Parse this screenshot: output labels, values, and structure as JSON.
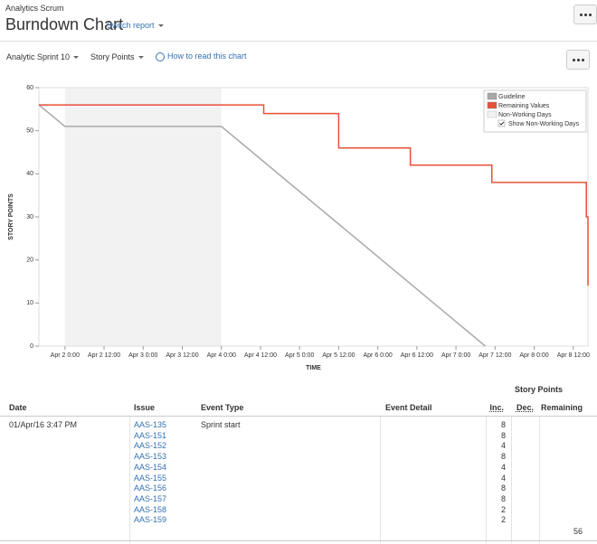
{
  "header": {
    "project": "Analytics Scrum",
    "title": "Burndown Chart",
    "switch": "Switch report"
  },
  "toolbar": {
    "sprint": "Analytic Sprint 10",
    "estimate": "Story Points",
    "help": "How to read this chart"
  },
  "chart_data": {
    "type": "line",
    "xlabel": "TIME",
    "ylabel": "STORY POINTS",
    "xlim": [
      -8,
      160.5
    ],
    "xticks": [
      {
        "value": 0,
        "label": "Apr 2 0:00"
      },
      {
        "value": 12,
        "label": "Apr 2 12:00"
      },
      {
        "value": 24,
        "label": "Apr 3 0:00"
      },
      {
        "value": 36,
        "label": "Apr 3 12:00"
      },
      {
        "value": 48,
        "label": "Apr 4 0:00"
      },
      {
        "value": 60,
        "label": "Apr 4 12:00"
      },
      {
        "value": 72,
        "label": "Apr 5 0:00"
      },
      {
        "value": 84,
        "label": "Apr 5 12:00"
      },
      {
        "value": 96,
        "label": "Apr 6 0:00"
      },
      {
        "value": 108,
        "label": "Apr 6 12:00"
      },
      {
        "value": 120,
        "label": "Apr 7 0:00"
      },
      {
        "value": 132,
        "label": "Apr 7 12:00"
      },
      {
        "value": 144,
        "label": "Apr 8 0:00"
      },
      {
        "value": 156,
        "label": "Apr 8 12:00"
      }
    ],
    "ylim": [
      0,
      60
    ],
    "yticks": [
      0,
      10,
      20,
      30,
      40,
      50,
      60
    ],
    "non_working": {
      "name": "Non-Working Days",
      "color": "#f2f2f2",
      "x": [
        0,
        48
      ]
    },
    "legend_toggle": "Show Non-Working Days",
    "series": [
      {
        "name": "Guideline",
        "color": "#a8a8a8",
        "x": [
          -8,
          0,
          48,
          129
        ],
        "values": [
          56,
          51,
          51,
          0
        ]
      },
      {
        "name": "Remaining Values",
        "color": "#e8503a",
        "x": [
          -8,
          61,
          61,
          84,
          84,
          106,
          106,
          131,
          131,
          160,
          160,
          160.5,
          160.5
        ],
        "values": [
          56,
          56,
          54,
          54,
          46,
          46,
          42,
          42,
          38,
          38,
          30,
          30,
          14
        ]
      }
    ]
  },
  "table": {
    "group": "Story Points",
    "columns": [
      "Date",
      "Issue",
      "Event Type",
      "Event Detail",
      "Inc.",
      "Dec.",
      "Remaining"
    ],
    "rows": [
      {
        "date": "01/Apr/16 3:47 PM",
        "issues": [
          "AAS-135",
          "AAS-151",
          "AAS-152",
          "AAS-153",
          "AAS-154",
          "AAS-155",
          "AAS-156",
          "AAS-157",
          "AAS-158",
          "AAS-159"
        ],
        "event_type": "Sprint start",
        "inc": [
          8,
          8,
          4,
          8,
          4,
          4,
          8,
          8,
          2,
          2
        ],
        "remaining": 56
      }
    ]
  }
}
